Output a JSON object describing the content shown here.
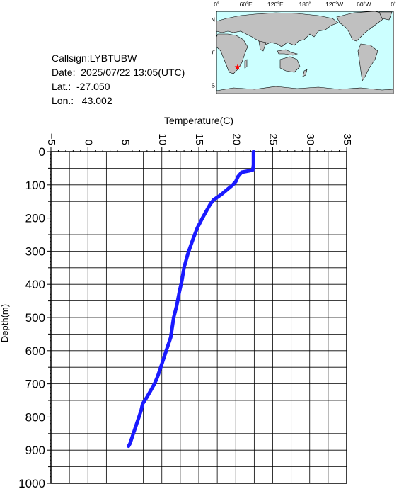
{
  "info": {
    "callsign": "Callsign:LYBTUBW",
    "date": "Date:  2025/07/22 13:05(UTC)",
    "lat": "Lat.:  -27.050",
    "lon": "Lon.:   43.002"
  },
  "map": {
    "lon_labels": [
      "0˚",
      "60˚E",
      "120˚E",
      "180˚",
      "120˚W",
      "60˚W",
      "0˚"
    ],
    "lat_labels": [
      "60˚N",
      "0˚",
      "60˚S"
    ],
    "ocean_color": "#ccffff",
    "land_color": "#c0c0c0",
    "marker_color": "#ff0000",
    "marker": {
      "lat": -27.05,
      "lon": 43.002
    }
  },
  "chart_data": {
    "type": "line",
    "xlabel": "Temperature(C)",
    "ylabel": "Depth(m)",
    "xlim": [
      -5,
      35
    ],
    "ylim": [
      1000,
      0
    ],
    "x_ticks": [
      -5,
      0,
      5,
      10,
      15,
      20,
      25,
      30,
      35
    ],
    "y_ticks": [
      0,
      100,
      200,
      300,
      400,
      500,
      600,
      700,
      800,
      900,
      1000
    ],
    "grid": true,
    "line_color": "#1a1aff",
    "series": [
      {
        "x": [
          22.4,
          22.4,
          22.4,
          22.3,
          21.8,
          20.8,
          20.3,
          20.0,
          19.6,
          18.8,
          18.0,
          17.0,
          16.5,
          16.0,
          15.5,
          14.8,
          14.2,
          13.8,
          13.5,
          13.0,
          12.7,
          12.4,
          12.0,
          11.6,
          11.2,
          10.6,
          10.0,
          9.4,
          9.0,
          8.5,
          8.0,
          7.4,
          7.2,
          6.9,
          6.6,
          6.3,
          6.0,
          5.7,
          5.5
        ],
        "y": [
          0,
          20,
          40,
          55,
          58,
          62,
          75,
          90,
          100,
          115,
          130,
          145,
          160,
          180,
          200,
          230,
          265,
          290,
          310,
          350,
          390,
          420,
          465,
          500,
          560,
          600,
          640,
          680,
          700,
          720,
          740,
          760,
          780,
          800,
          820,
          840,
          860,
          880,
          888
        ]
      }
    ]
  }
}
